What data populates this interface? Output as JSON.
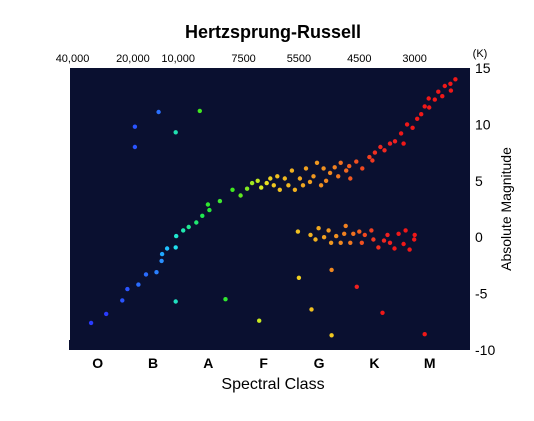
{
  "chart_data": {
    "type": "scatter",
    "title": "Hertzsprung-Russell",
    "xlabel": "Spectral Class",
    "ylabel": "Absolute Magnitude",
    "top_axis_unit": "(K)",
    "top_ticks": [
      {
        "label": "40,000",
        "x": 0.0
      },
      {
        "label": "20,000",
        "x": 1.2
      },
      {
        "label": "10,000",
        "x": 2.1
      },
      {
        "label": "7500",
        "x": 3.4
      },
      {
        "label": "5500",
        "x": 4.5
      },
      {
        "label": "4500",
        "x": 5.7
      },
      {
        "label": "3000",
        "x": 6.8
      }
    ],
    "bottom_ticks": [
      {
        "label": "O",
        "x": 0.5
      },
      {
        "label": "B",
        "x": 1.6
      },
      {
        "label": "A",
        "x": 2.7
      },
      {
        "label": "F",
        "x": 3.8
      },
      {
        "label": "G",
        "x": 4.9
      },
      {
        "label": "K",
        "x": 6.0
      },
      {
        "label": "M",
        "x": 7.1
      }
    ],
    "right_ticks": [
      {
        "label": "-10",
        "y": -10
      },
      {
        "label": "-5",
        "y": -5
      },
      {
        "label": "0",
        "y": 0
      },
      {
        "label": "5",
        "y": 5
      },
      {
        "label": "10",
        "y": 10
      },
      {
        "label": "15",
        "y": 15
      }
    ],
    "xlim": [
      -0.05,
      7.9
    ],
    "ylim": [
      15,
      -10
    ],
    "background": "#0a1030",
    "points": [
      {
        "x": 0.37,
        "y": -7.6,
        "color": "#2a3cff"
      },
      {
        "x": 0.67,
        "y": -6.8,
        "color": "#2a3cff"
      },
      {
        "x": 0.99,
        "y": -5.6,
        "color": "#2a54ff"
      },
      {
        "x": 1.09,
        "y": -4.6,
        "color": "#2a54ff"
      },
      {
        "x": 1.31,
        "y": -4.2,
        "color": "#2a6cff"
      },
      {
        "x": 1.46,
        "y": -3.3,
        "color": "#2a6cff"
      },
      {
        "x": 1.67,
        "y": -3.1,
        "color": "#2a80ff"
      },
      {
        "x": 1.77,
        "y": -2.1,
        "color": "#2a90ff"
      },
      {
        "x": 1.78,
        "y": -1.5,
        "color": "#20a8ff"
      },
      {
        "x": 1.88,
        "y": -1.0,
        "color": "#20c0ff"
      },
      {
        "x": 2.05,
        "y": -0.9,
        "color": "#20e0f0"
      },
      {
        "x": 2.06,
        "y": 0.1,
        "color": "#20e8d0"
      },
      {
        "x": 2.2,
        "y": 0.6,
        "color": "#20e8b0"
      },
      {
        "x": 2.31,
        "y": 0.9,
        "color": "#20e890"
      },
      {
        "x": 2.46,
        "y": 1.3,
        "color": "#20e870"
      },
      {
        "x": 2.58,
        "y": 1.9,
        "color": "#20e850"
      },
      {
        "x": 2.72,
        "y": 2.4,
        "color": "#28e838"
      },
      {
        "x": 2.69,
        "y": 2.9,
        "color": "#30e830"
      },
      {
        "x": 2.93,
        "y": 3.2,
        "color": "#40e830"
      },
      {
        "x": 3.18,
        "y": 4.2,
        "color": "#40e820"
      },
      {
        "x": 3.34,
        "y": 3.7,
        "color": "#60e820"
      },
      {
        "x": 3.47,
        "y": 4.3,
        "color": "#80e820"
      },
      {
        "x": 3.57,
        "y": 4.8,
        "color": "#a0e820"
      },
      {
        "x": 3.68,
        "y": 5.0,
        "color": "#c0e820"
      },
      {
        "x": 3.75,
        "y": 4.4,
        "color": "#d8e820"
      },
      {
        "x": 3.86,
        "y": 4.8,
        "color": "#e8e020"
      },
      {
        "x": 3.93,
        "y": 5.2,
        "color": "#ecd020"
      },
      {
        "x": 4.0,
        "y": 4.6,
        "color": "#f0c820"
      },
      {
        "x": 4.07,
        "y": 5.4,
        "color": "#f0c020"
      },
      {
        "x": 4.12,
        "y": 4.2,
        "color": "#f0c020"
      },
      {
        "x": 4.22,
        "y": 5.2,
        "color": "#f0b820"
      },
      {
        "x": 4.29,
        "y": 4.6,
        "color": "#f0b820"
      },
      {
        "x": 4.36,
        "y": 5.9,
        "color": "#f0b020"
      },
      {
        "x": 4.42,
        "y": 4.2,
        "color": "#f0b020"
      },
      {
        "x": 4.52,
        "y": 5.2,
        "color": "#f0a820"
      },
      {
        "x": 4.58,
        "y": 4.6,
        "color": "#f0a820"
      },
      {
        "x": 4.64,
        "y": 6.1,
        "color": "#f0a020"
      },
      {
        "x": 4.72,
        "y": 4.9,
        "color": "#f0a020"
      },
      {
        "x": 4.79,
        "y": 5.4,
        "color": "#f09820"
      },
      {
        "x": 4.86,
        "y": 6.6,
        "color": "#f09820"
      },
      {
        "x": 4.94,
        "y": 4.6,
        "color": "#f09020"
      },
      {
        "x": 4.99,
        "y": 6.1,
        "color": "#f09020"
      },
      {
        "x": 5.04,
        "y": 5.0,
        "color": "#f08820"
      },
      {
        "x": 5.12,
        "y": 5.7,
        "color": "#f08820"
      },
      {
        "x": 5.21,
        "y": 6.2,
        "color": "#f08020"
      },
      {
        "x": 5.28,
        "y": 5.4,
        "color": "#f07820"
      },
      {
        "x": 5.33,
        "y": 6.6,
        "color": "#f07020"
      },
      {
        "x": 5.44,
        "y": 5.9,
        "color": "#f06820"
      },
      {
        "x": 5.5,
        "y": 6.3,
        "color": "#f06020"
      },
      {
        "x": 5.52,
        "y": 5.2,
        "color": "#f05820"
      },
      {
        "x": 5.64,
        "y": 6.7,
        "color": "#f05020"
      },
      {
        "x": 5.76,
        "y": 6.1,
        "color": "#f04820"
      },
      {
        "x": 5.9,
        "y": 7.1,
        "color": "#f04020"
      },
      {
        "x": 5.96,
        "y": 6.8,
        "color": "#f03820"
      },
      {
        "x": 6.01,
        "y": 7.5,
        "color": "#f03020"
      },
      {
        "x": 6.12,
        "y": 8.0,
        "color": "#f02820"
      },
      {
        "x": 6.2,
        "y": 7.7,
        "color": "#f02820"
      },
      {
        "x": 6.31,
        "y": 8.3,
        "color": "#f02020"
      },
      {
        "x": 6.41,
        "y": 8.5,
        "color": "#f02020"
      },
      {
        "x": 6.53,
        "y": 9.2,
        "color": "#f01818"
      },
      {
        "x": 6.58,
        "y": 8.3,
        "color": "#f01818"
      },
      {
        "x": 6.65,
        "y": 10.0,
        "color": "#f01818"
      },
      {
        "x": 6.76,
        "y": 9.7,
        "color": "#f01818"
      },
      {
        "x": 6.85,
        "y": 10.5,
        "color": "#f01818"
      },
      {
        "x": 6.93,
        "y": 10.9,
        "color": "#f01818"
      },
      {
        "x": 7.0,
        "y": 11.6,
        "color": "#f01818"
      },
      {
        "x": 7.09,
        "y": 11.5,
        "color": "#f01818"
      },
      {
        "x": 7.08,
        "y": 12.3,
        "color": "#f01818"
      },
      {
        "x": 7.2,
        "y": 12.2,
        "color": "#f01818"
      },
      {
        "x": 7.27,
        "y": 12.9,
        "color": "#f01818"
      },
      {
        "x": 7.35,
        "y": 12.5,
        "color": "#f01818"
      },
      {
        "x": 7.4,
        "y": 13.4,
        "color": "#f01818"
      },
      {
        "x": 7.51,
        "y": 13.6,
        "color": "#f01818"
      },
      {
        "x": 7.61,
        "y": 14.0,
        "color": "#f01818"
      },
      {
        "x": 7.52,
        "y": 13.0,
        "color": "#f01818"
      },
      {
        "x": 4.48,
        "y": 0.5,
        "color": "#f0c020"
      },
      {
        "x": 4.73,
        "y": 0.2,
        "color": "#f0b020"
      },
      {
        "x": 4.83,
        "y": -0.2,
        "color": "#f0b020"
      },
      {
        "x": 4.89,
        "y": 0.8,
        "color": "#f0a820"
      },
      {
        "x": 5.0,
        "y": 0.0,
        "color": "#f0a020"
      },
      {
        "x": 5.09,
        "y": 0.6,
        "color": "#f09820"
      },
      {
        "x": 5.14,
        "y": -0.5,
        "color": "#f09820"
      },
      {
        "x": 5.24,
        "y": 0.1,
        "color": "#f09020"
      },
      {
        "x": 5.33,
        "y": -0.5,
        "color": "#f08820"
      },
      {
        "x": 5.4,
        "y": 0.3,
        "color": "#f08020"
      },
      {
        "x": 5.43,
        "y": 1.0,
        "color": "#f08020"
      },
      {
        "x": 5.52,
        "y": -0.5,
        "color": "#f07820"
      },
      {
        "x": 5.58,
        "y": 0.3,
        "color": "#f07020"
      },
      {
        "x": 5.7,
        "y": 0.5,
        "color": "#f06020"
      },
      {
        "x": 5.75,
        "y": -0.5,
        "color": "#f05020"
      },
      {
        "x": 5.81,
        "y": 0.2,
        "color": "#f04820"
      },
      {
        "x": 5.94,
        "y": 0.6,
        "color": "#f04020"
      },
      {
        "x": 5.98,
        "y": -0.2,
        "color": "#f03820"
      },
      {
        "x": 6.08,
        "y": -0.9,
        "color": "#f03020"
      },
      {
        "x": 6.19,
        "y": -0.3,
        "color": "#f02820"
      },
      {
        "x": 6.26,
        "y": 0.2,
        "color": "#f02020"
      },
      {
        "x": 6.31,
        "y": -0.5,
        "color": "#f02020"
      },
      {
        "x": 6.4,
        "y": -1.0,
        "color": "#f01818"
      },
      {
        "x": 6.48,
        "y": 0.3,
        "color": "#f01818"
      },
      {
        "x": 6.58,
        "y": -0.6,
        "color": "#f01818"
      },
      {
        "x": 6.62,
        "y": 0.6,
        "color": "#f01818"
      },
      {
        "x": 6.7,
        "y": -1.1,
        "color": "#f01818"
      },
      {
        "x": 6.79,
        "y": -0.2,
        "color": "#f01818"
      },
      {
        "x": 6.8,
        "y": 0.2,
        "color": "#f01818"
      },
      {
        "x": 2.05,
        "y": -5.7,
        "color": "#20e0c0"
      },
      {
        "x": 3.04,
        "y": -5.5,
        "color": "#30e830"
      },
      {
        "x": 3.71,
        "y": -7.4,
        "color": "#c8e820"
      },
      {
        "x": 4.5,
        "y": -3.6,
        "color": "#f0d020"
      },
      {
        "x": 4.75,
        "y": -6.4,
        "color": "#f0c020"
      },
      {
        "x": 5.15,
        "y": -8.7,
        "color": "#f0c820"
      },
      {
        "x": 5.15,
        "y": -2.9,
        "color": "#f08820"
      },
      {
        "x": 5.65,
        "y": -4.4,
        "color": "#f02020"
      },
      {
        "x": 6.16,
        "y": -6.7,
        "color": "#f01818"
      },
      {
        "x": 7.0,
        "y": -8.6,
        "color": "#f01818"
      },
      {
        "x": 1.24,
        "y": 8.0,
        "color": "#2a54ff"
      },
      {
        "x": 1.24,
        "y": 9.8,
        "color": "#2a54ff"
      },
      {
        "x": 1.71,
        "y": 11.1,
        "color": "#2a70ff"
      },
      {
        "x": 2.05,
        "y": 9.3,
        "color": "#20e0b0"
      },
      {
        "x": 2.53,
        "y": 11.2,
        "color": "#40e820"
      }
    ]
  }
}
